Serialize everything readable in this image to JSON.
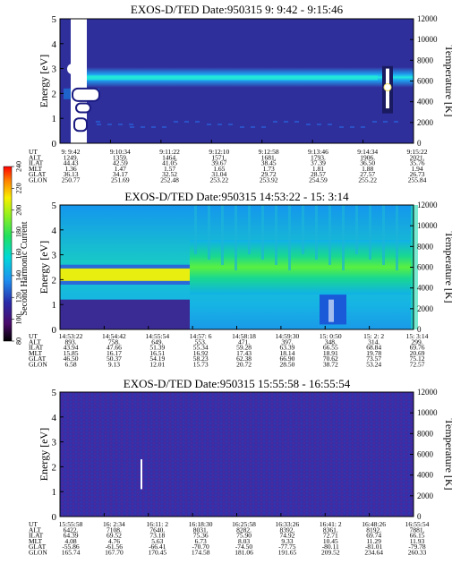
{
  "colors": {
    "background": "#ffffff",
    "dark_blue": "#30309a",
    "light_blue": "#1e9bf0",
    "cyan": "#00d7e6",
    "green": "#22dc64",
    "white": "#ffffff"
  },
  "color_scale": {
    "label": "Second Harmonic Current",
    "ticks": [
      "80",
      "100",
      "120",
      "140",
      "160",
      "180",
      "200",
      "220",
      "240"
    ],
    "min": 80,
    "max": 240
  },
  "chart_data": [
    {
      "type": "heatmap",
      "title": "EXOS-D/TED   Date:950315  9: 9:42 - 9:15:46",
      "ylabel": "Energy [eV]",
      "y2label": "Temperature [K]",
      "ylim": [
        0,
        5
      ],
      "y2lim": [
        0,
        12000
      ],
      "yticks": [
        "0",
        "1",
        "2",
        "3",
        "4",
        "5"
      ],
      "y2ticks": [
        "0",
        "2000",
        "4000",
        "6000",
        "8000",
        "10000",
        "12000"
      ],
      "x_ticks": [
        "9: 9:42",
        "9:10:34",
        "9:11:22",
        "9:12:10",
        "9:12:58",
        "9:13:46",
        "9:14:34",
        "9:15:22"
      ],
      "orbit_rows": [
        {
          "label": "UT",
          "values": [
            "9: 9:42",
            "9:10:34",
            "9:11:22",
            "9:12:10",
            "9:12:58",
            "9:13:46",
            "9:14:34",
            "9:15:22"
          ]
        },
        {
          "label": "ALT",
          "values": [
            "1249.",
            "1359.",
            "1464.",
            "1571.",
            "1681.",
            "1793.",
            "1906.",
            "2021."
          ]
        },
        {
          "label": "ILAT",
          "values": [
            "44.43",
            "42.59",
            "41.05",
            "39.67",
            "38.45",
            "37.39",
            "36.50",
            "35.76"
          ]
        },
        {
          "label": "MLT",
          "values": [
            "1.36",
            "1.47",
            "1.57",
            "1.65",
            "1.73",
            "1.81",
            "1.88",
            "1.94"
          ]
        },
        {
          "label": "GLAT",
          "values": [
            "36.13",
            "34.17",
            "32.52",
            "31.04",
            "29.72",
            "28.57",
            "27.57",
            "26.73"
          ]
        },
        {
          "label": "GLON",
          "values": [
            "250.77",
            "251.69",
            "252.48",
            "253.22",
            "253.92",
            "254.59",
            "255.22",
            "255.84"
          ]
        }
      ]
    },
    {
      "type": "heatmap",
      "title": "EXOS-D/TED   Date:950315  14:53:22 - 15: 3:14",
      "ylabel": "Energy [eV]",
      "y2label": "Temperature [K]",
      "ylim": [
        0,
        5
      ],
      "y2lim": [
        0,
        12000
      ],
      "yticks": [
        "0",
        "1",
        "2",
        "3",
        "4",
        "5"
      ],
      "y2ticks": [
        "0",
        "2000",
        "4000",
        "6000",
        "8000",
        "10000",
        "12000"
      ],
      "x_ticks": [
        "14:53:22",
        "14:54:42",
        "14:55:54",
        "14:57: 6",
        "14:58:18",
        "14:59:30",
        "15: 0:50",
        "15: 2: 2",
        "15: 3:14"
      ],
      "orbit_rows": [
        {
          "label": "UT",
          "values": [
            "14:53:22",
            "14:54:42",
            "14:55:54",
            "14:57: 6",
            "14:58:18",
            "14:59:30",
            "15: 0:50",
            "15: 2: 2",
            "15: 3:14"
          ]
        },
        {
          "label": "ALT",
          "values": [
            "893.",
            "758.",
            "649.",
            "553.",
            "471.",
            "397.",
            "348.",
            "314.",
            "299."
          ]
        },
        {
          "label": "ILAT",
          "values": [
            "43.94",
            "47.66",
            "51.39",
            "55.34",
            "59.28",
            "63.39",
            "66.55",
            "68.84",
            "69.76"
          ]
        },
        {
          "label": "MLT",
          "values": [
            "15.85",
            "16.17",
            "16.51",
            "16.92",
            "17.43",
            "18.14",
            "18.91",
            "19.78",
            "20.69"
          ]
        },
        {
          "label": "GLAT",
          "values": [
            "46.50",
            "50.37",
            "54.19",
            "58.23",
            "62.38",
            "66.90",
            "70.62",
            "73.57",
            "75.12"
          ]
        },
        {
          "label": "GLON",
          "values": [
            "6.58",
            "9.13",
            "12.01",
            "15.73",
            "20.72",
            "28.50",
            "38.72",
            "53.24",
            "72.57"
          ]
        }
      ]
    },
    {
      "type": "heatmap",
      "title": "EXOS-D/TED   Date:950315  15:55:58 - 16:55:54",
      "ylabel": "Energy [eV]",
      "y2label": "Temperature [K]",
      "ylim": [
        0,
        5
      ],
      "y2lim": [
        0,
        12000
      ],
      "yticks": [
        "0",
        "1",
        "2",
        "3",
        "4",
        "5"
      ],
      "y2ticks": [
        "0",
        "2000",
        "4000",
        "6000",
        "8000",
        "10000",
        "12000"
      ],
      "x_ticks": [
        "15:55:58",
        "16: 2:34",
        "16:11: 2",
        "16:18:30",
        "16:25:58",
        "16:33:26",
        "16:41: 2",
        "16:48:26",
        "16:55:54"
      ],
      "orbit_rows": [
        {
          "label": "UT",
          "values": [
            "15:55:58",
            "16: 2:34",
            "16:11: 2",
            "16:18:30",
            "16:25:58",
            "16:33:26",
            "16:41: 2",
            "16:48:26",
            "16:55:54"
          ]
        },
        {
          "label": "ALT",
          "values": [
            "6422.",
            "7108.",
            "7640.",
            "8031.",
            "8282.",
            "8392.",
            "8361.",
            "8192.",
            "7881."
          ]
        },
        {
          "label": "ILAT",
          "values": [
            "64.39",
            "69.52",
            "73.18",
            "75.36",
            "75.90",
            "74.92",
            "72.71",
            "69.74",
            "66.15"
          ]
        },
        {
          "label": "MLT",
          "values": [
            "4.08",
            "4.76",
            "5.63",
            "6.73",
            "8.03",
            "9.33",
            "10.45",
            "11.29",
            "11.93"
          ]
        },
        {
          "label": "GLAT",
          "values": [
            "-55.86",
            "-61.56",
            "-66.41",
            "-70.70",
            "-74.50",
            "-77.75",
            "-80.11",
            "-81.01",
            "-79.78"
          ]
        },
        {
          "label": "GLON",
          "values": [
            "165.74",
            "167.70",
            "170.45",
            "174.58",
            "181.06",
            "191.65",
            "209.52",
            "234.64",
            "260.33"
          ]
        }
      ]
    }
  ]
}
